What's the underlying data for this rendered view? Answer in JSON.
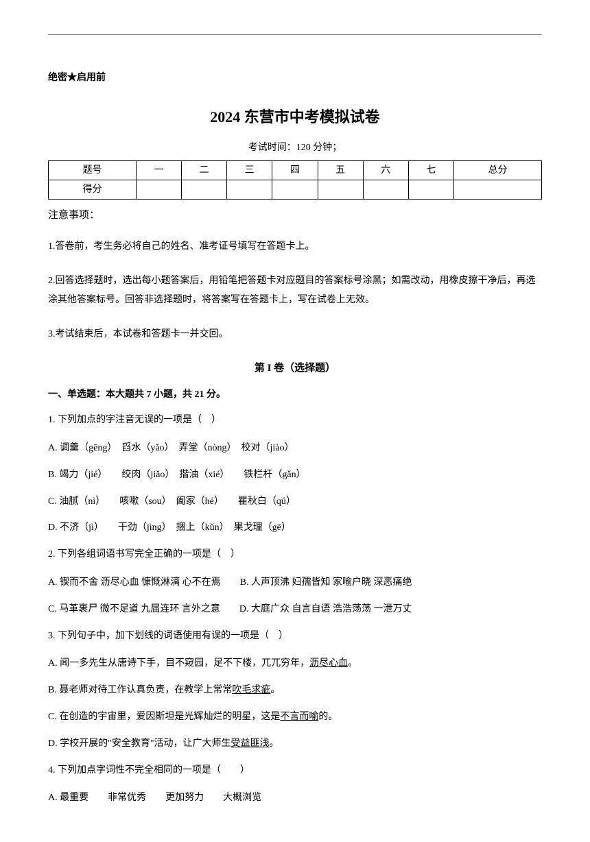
{
  "classified": "绝密★启用前",
  "title": "2024 东营市中考模拟试卷",
  "exam_time": "考试时间：120 分钟；",
  "table": {
    "row1": [
      "题号",
      "一",
      "二",
      "三",
      "四",
      "五",
      "六",
      "七",
      "总分"
    ],
    "row2_label": "得分"
  },
  "notice_header": "注意事项：",
  "notices": [
    "1.答卷前，考生务必将自己的姓名、准考证号填写在答题卡上。",
    "2.回答选择题时，选出每小题答案后，用铅笔把答题卡对应题目的答案标号涂黑；如需改动，用橡皮擦干净后，再选涂其他答案标号。回答非选择题时，将答案写在答题卡上，写在试卷上无效。",
    "3.考试结束后，本试卷和答题卡一并交回。"
  ],
  "section1_title": "第 I 卷（选择题）",
  "subsection1": "一、单选题：本大题共 7 小题，共 21 分。",
  "q1": {
    "stem": "1. 下列加点的字注音无误的一项是（　）",
    "a": "A. 调羹（gēng）　舀水（yǎo）　弄堂（nòng）　校对（jiào）",
    "b": "B. 竭力（jié）　　绞肉（jiǎo）　揩油（xié）　　铁栏杆（gǎn）",
    "c": "C. 油腻（nì）　　咳嗽（sou）　阖家（hé）　　瞿秋白（qú）",
    "d": "D. 不济（jì）　　干劲（jìng）　捆上（kǔn）　果戈理（gē）"
  },
  "q2": {
    "stem": "2. 下列各组词语书写完全正确的一项是（　）",
    "a_left": "A. 锲而不舍  沥尽心血  慷慨淋漓  心不在焉",
    "a_right": "B. 人声顶沸  妇孺皆知  家喻户晓  深恶痛绝",
    "b_left": "C. 马革裹尸  微不足道  九届连环  言外之意",
    "b_right": "D. 大庭广众  自言自语  浩浩荡荡  一泄万丈"
  },
  "q3": {
    "stem": "3. 下列句子中，加下划线的词语使用有误的一项是（　）",
    "a_pre": "A. 闻一多先生从唐诗下手，目不窥园，足不下楼，兀兀穷年，",
    "a_u": "沥尽心血",
    "a_post": "。",
    "b_pre": "B. 聂老师对待工作认真负责，在教学上常常",
    "b_u": "吹毛求疵",
    "b_post": "。",
    "c_pre": "C. 在创造的宇宙里，爱因斯坦是光辉灿烂的明星，这是",
    "c_u": "不言而喻",
    "c_post": "的。",
    "d_pre": "D. 学校开展的\"安全教育\"活动，让广大师生",
    "d_u": "受益匪浅",
    "d_post": "。"
  },
  "q4": {
    "stem": "4. 下列加点字词性不完全相同的一项是（　　）",
    "a1": "A. 最重要",
    "a2": "非常优秀",
    "a3": "更加努力",
    "a4": "大概浏览"
  }
}
